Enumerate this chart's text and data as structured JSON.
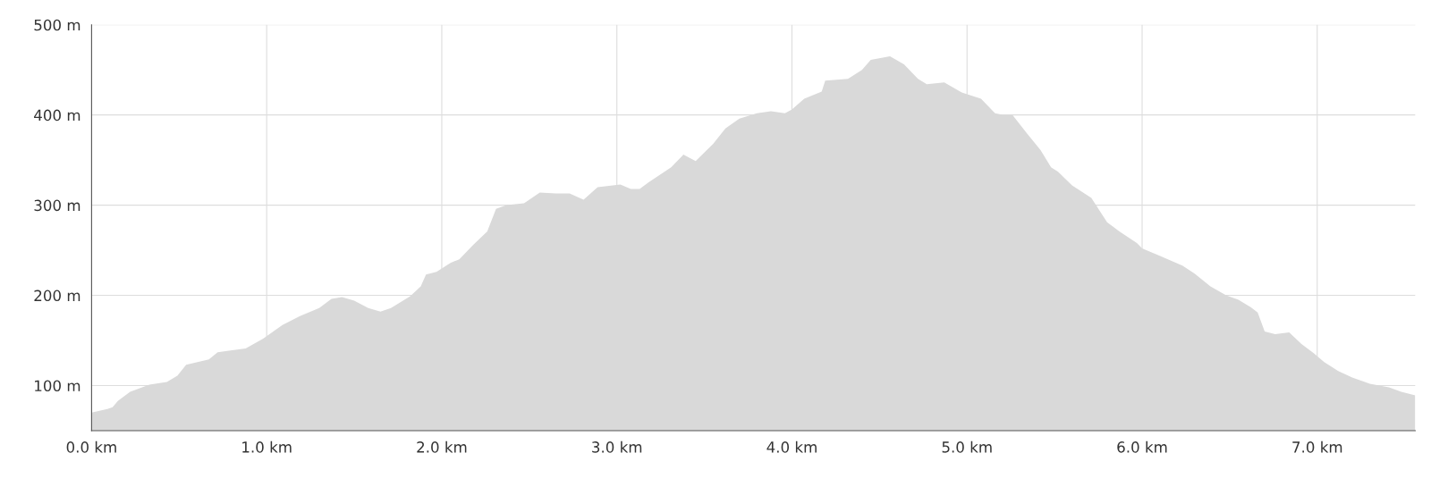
{
  "chart_data": {
    "type": "area",
    "color": "#d9d9d9",
    "grid": true,
    "x": [
      0,
      0.09,
      0.12,
      0.15,
      0.22,
      0.33,
      0.43,
      0.49,
      0.54,
      0.67,
      0.72,
      0.88,
      0.98,
      1.09,
      1.19,
      1.3,
      1.37,
      1.43,
      1.5,
      1.58,
      1.65,
      1.71,
      1.82,
      1.88,
      1.91,
      1.97,
      2.05,
      2.1,
      2.18,
      2.26,
      2.31,
      2.37,
      2.47,
      2.56,
      2.65,
      2.73,
      2.81,
      2.89,
      3.02,
      3.08,
      3.13,
      3.18,
      3.31,
      3.38,
      3.45,
      3.55,
      3.62,
      3.7,
      3.8,
      3.88,
      3.96,
      4.0,
      4.07,
      4.17,
      4.19,
      4.32,
      4.4,
      4.45,
      4.56,
      4.64,
      4.72,
      4.77,
      4.87,
      4.97,
      5.08,
      5.16,
      5.21,
      5.26,
      5.34,
      5.42,
      5.48,
      5.52,
      5.6,
      5.71,
      5.8,
      5.87,
      5.97,
      6.0,
      6.1,
      6.23,
      6.3,
      6.39,
      6.48,
      6.55,
      6.62,
      6.66,
      6.7,
      6.76,
      6.84,
      6.91,
      6.98,
      7.04,
      7.12,
      7.2,
      7.3,
      7.41,
      7.48,
      7.56
    ],
    "values": [
      70,
      74,
      76,
      83,
      93,
      101,
      104,
      111,
      123,
      129,
      137,
      141,
      152,
      167,
      177,
      186,
      196,
      198,
      194,
      186,
      182,
      186,
      199,
      210,
      223,
      226,
      236,
      240,
      256,
      271,
      296,
      300,
      302,
      314,
      313,
      313,
      306,
      320,
      323,
      318,
      318,
      325,
      342,
      356,
      349,
      368,
      385,
      396,
      402,
      404,
      402,
      406,
      418,
      426,
      438,
      440,
      450,
      461,
      465,
      456,
      440,
      434,
      436,
      425,
      418,
      402,
      400,
      400,
      380,
      361,
      342,
      337,
      322,
      308,
      281,
      271,
      258,
      252,
      244,
      233,
      224,
      210,
      200,
      195,
      187,
      181,
      160,
      157,
      159,
      146,
      136,
      126,
      116,
      109,
      102,
      98,
      93,
      89
    ],
    "xlim": [
      0,
      7.56
    ],
    "ylim": [
      50,
      500
    ],
    "xticks": [
      {
        "value": 0,
        "label": "0.0 km"
      },
      {
        "value": 1,
        "label": "1.0 km"
      },
      {
        "value": 2,
        "label": "2.0 km"
      },
      {
        "value": 3,
        "label": "3.0 km"
      },
      {
        "value": 4,
        "label": "4.0 km"
      },
      {
        "value": 5,
        "label": "5.0 km"
      },
      {
        "value": 6,
        "label": "6.0 km"
      },
      {
        "value": 7,
        "label": "7.0 km"
      }
    ],
    "yticks": [
      {
        "value": 100,
        "label": "100 m"
      },
      {
        "value": 200,
        "label": "200 m"
      },
      {
        "value": 300,
        "label": "300 m"
      },
      {
        "value": 400,
        "label": "400 m"
      },
      {
        "value": 500,
        "label": "500 m"
      }
    ]
  }
}
